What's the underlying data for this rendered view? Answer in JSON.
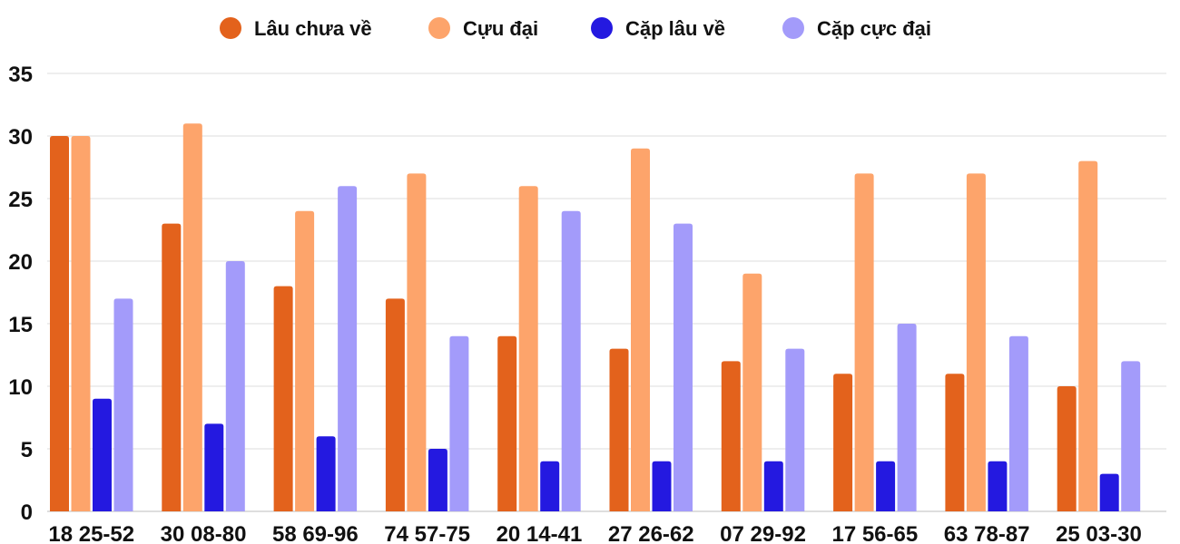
{
  "chart_data": {
    "type": "bar",
    "title": "",
    "xlabel": "",
    "ylabel": "",
    "ylim": [
      0,
      35
    ],
    "yticks": [
      0,
      5,
      10,
      15,
      20,
      25,
      30,
      35
    ],
    "grid": true,
    "legend_position": "top-center",
    "categories": [
      "18 25-52",
      "30 08-80",
      "58 69-96",
      "74 57-75",
      "20 14-41",
      "27 26-62",
      "07 29-92",
      "17 56-65",
      "63 78-87",
      "25 03-30"
    ],
    "series": [
      {
        "name": "Lâu chưa về",
        "color": "#e3621c",
        "values": [
          30,
          23,
          18,
          17,
          14,
          13,
          12,
          11,
          11,
          10
        ]
      },
      {
        "name": "Cựu đại",
        "color": "#fda46b",
        "values": [
          30,
          31,
          24,
          27,
          26,
          29,
          19,
          27,
          27,
          28
        ]
      },
      {
        "name": "Cặp lâu về",
        "color": "#2419e0",
        "values": [
          9,
          7,
          6,
          5,
          4,
          4,
          4,
          4,
          4,
          3
        ]
      },
      {
        "name": "Cặp cực đại",
        "color": "#a39bfa",
        "values": [
          17,
          20,
          26,
          14,
          24,
          23,
          13,
          15,
          14,
          12
        ]
      }
    ]
  }
}
